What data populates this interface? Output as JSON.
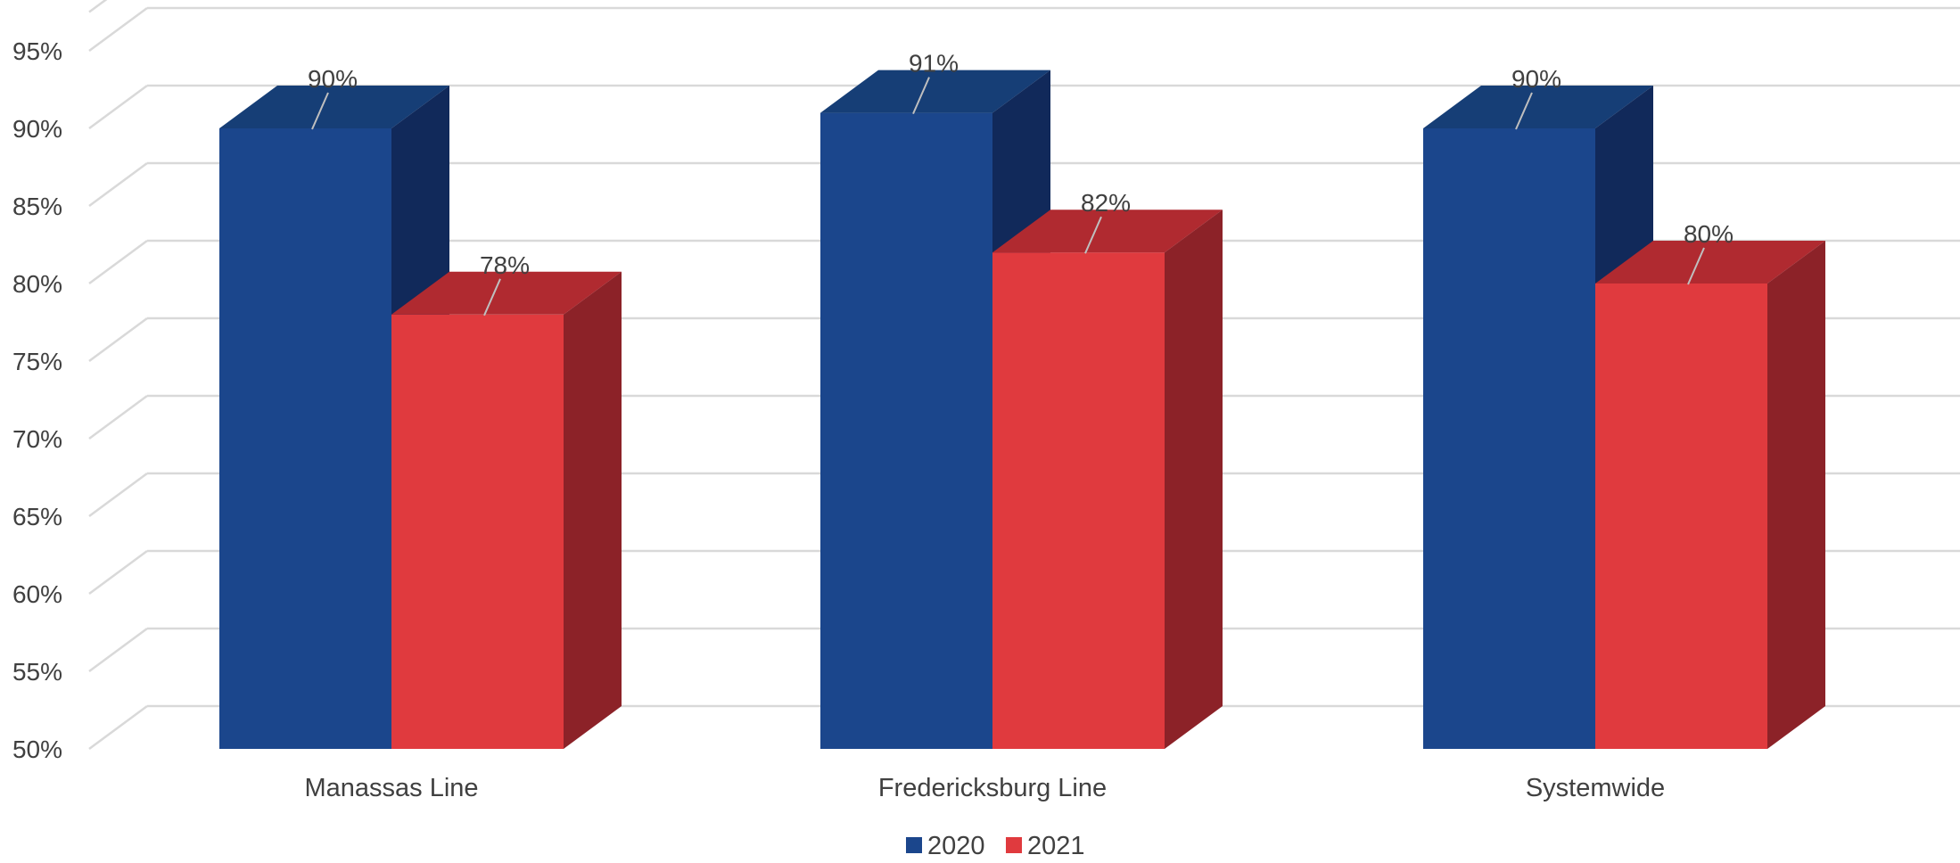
{
  "chart_data": {
    "type": "bar",
    "style": "3d-clustered-column",
    "categories": [
      "Manassas Line",
      "Fredericksburg Line",
      "Systemwide"
    ],
    "series": [
      {
        "name": "2020",
        "values": [
          90,
          91,
          90
        ],
        "labels": [
          "90%",
          "91%",
          "90%"
        ],
        "color": "#1B468C",
        "top_color": "#163E76",
        "side_color": "#11295A"
      },
      {
        "name": "2021",
        "values": [
          78,
          82,
          80
        ],
        "labels": [
          "78%",
          "82%",
          "80%"
        ],
        "color": "#E03A3E",
        "top_color": "#B02A30",
        "side_color": "#8C2228"
      }
    ],
    "ylim": [
      50,
      97.5
    ],
    "yticks": [
      50,
      55,
      60,
      65,
      70,
      75,
      80,
      85,
      90,
      95
    ],
    "ytick_labels": [
      "50%",
      "55%",
      "60%",
      "65%",
      "70%",
      "75%",
      "80%",
      "85%",
      "90%",
      "95%"
    ],
    "grid": true,
    "grid_color": "#D9D9D9",
    "legend": "bottom",
    "title": "",
    "xlabel": "",
    "ylabel": ""
  }
}
